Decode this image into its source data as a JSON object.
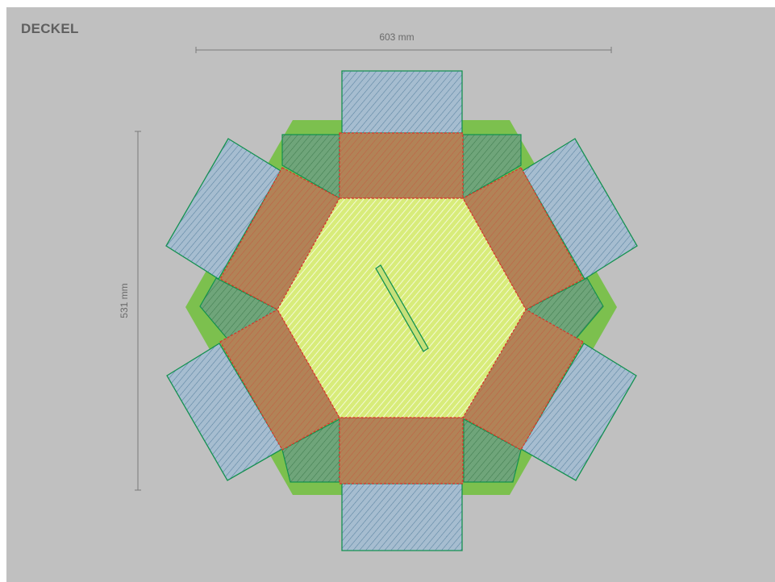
{
  "title": "DECKEL",
  "dimensions": {
    "width_label": "603 mm",
    "height_label": "531 mm"
  },
  "colors": {
    "background": "#c0c0c0",
    "base_green": "#7cc04e",
    "center_yellow": "#d8ec7a",
    "panel_brown": "#b18357",
    "flap_blue": "#a6bdd0",
    "small_flap": "#6fa57a",
    "outline_green": "#13924f",
    "fold_red": "#d8342b",
    "dimension_line": "#7a7a7a"
  }
}
